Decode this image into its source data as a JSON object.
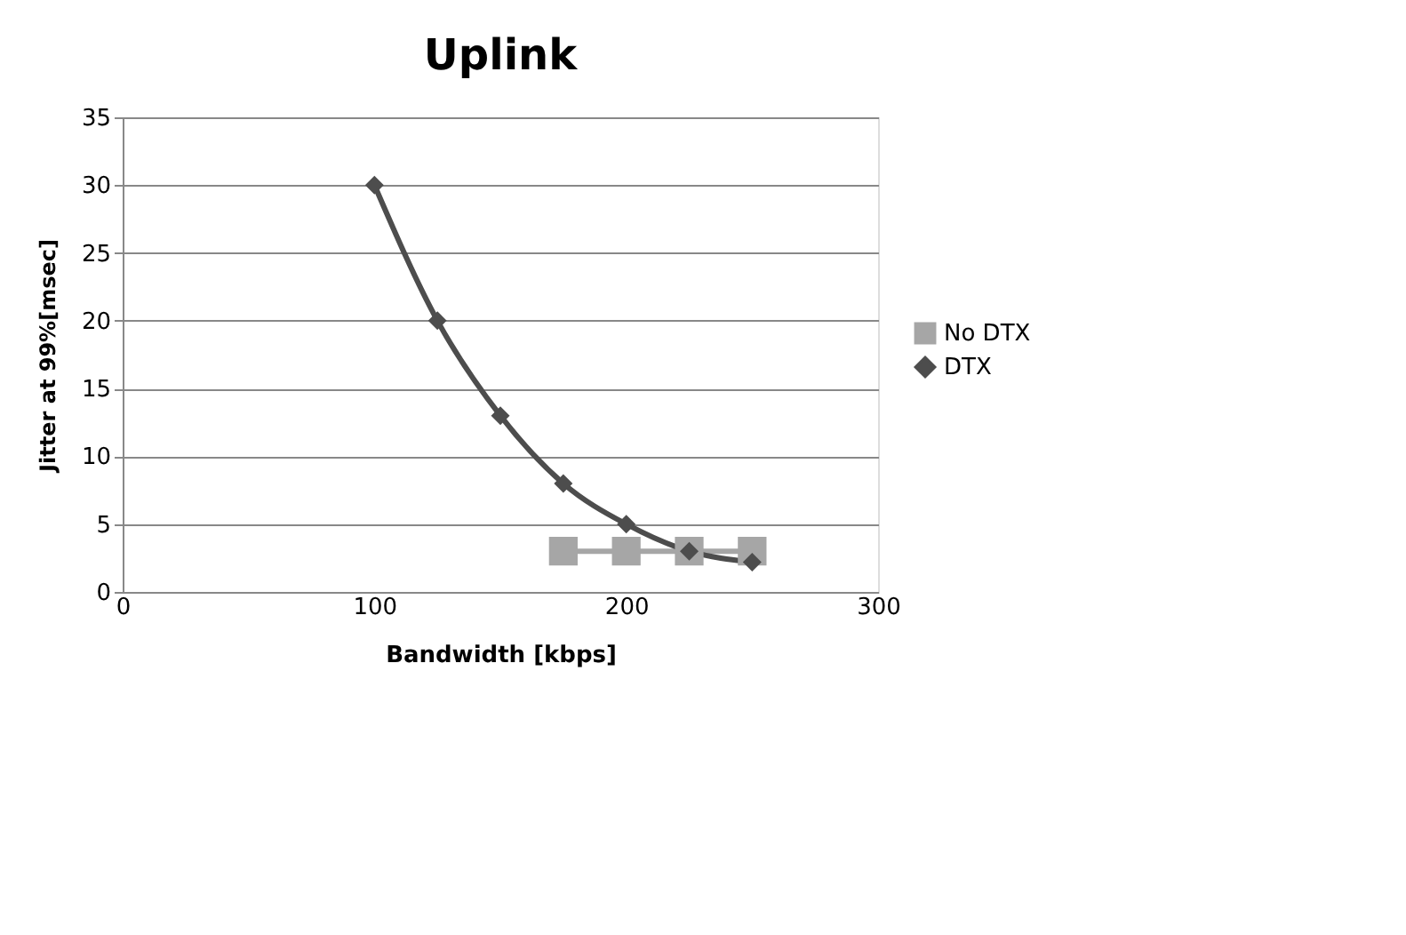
{
  "chart_data": {
    "type": "line",
    "title": "Uplink",
    "xlabel": "Bandwidth [kbps]",
    "ylabel": "Jitter at 99%[msec]",
    "xlim": [
      0,
      300
    ],
    "xticks": [
      0,
      100,
      200,
      300
    ],
    "ylim": [
      0,
      35
    ],
    "yticks": [
      0,
      5,
      10,
      15,
      20,
      25,
      30,
      35
    ],
    "grid": "y",
    "legend": "right",
    "series": [
      {
        "name": "No DTX",
        "color": "#a6a6a6",
        "marker": "square",
        "x": [
          175,
          200,
          225,
          250
        ],
        "values": [
          3,
          3,
          3,
          3
        ]
      },
      {
        "name": "DTX",
        "color": "#4d4d4d",
        "marker": "diamond",
        "x": [
          100,
          125,
          150,
          175,
          200,
          225,
          250
        ],
        "values": [
          30,
          20,
          13,
          8,
          5,
          3,
          2.2
        ]
      }
    ]
  }
}
